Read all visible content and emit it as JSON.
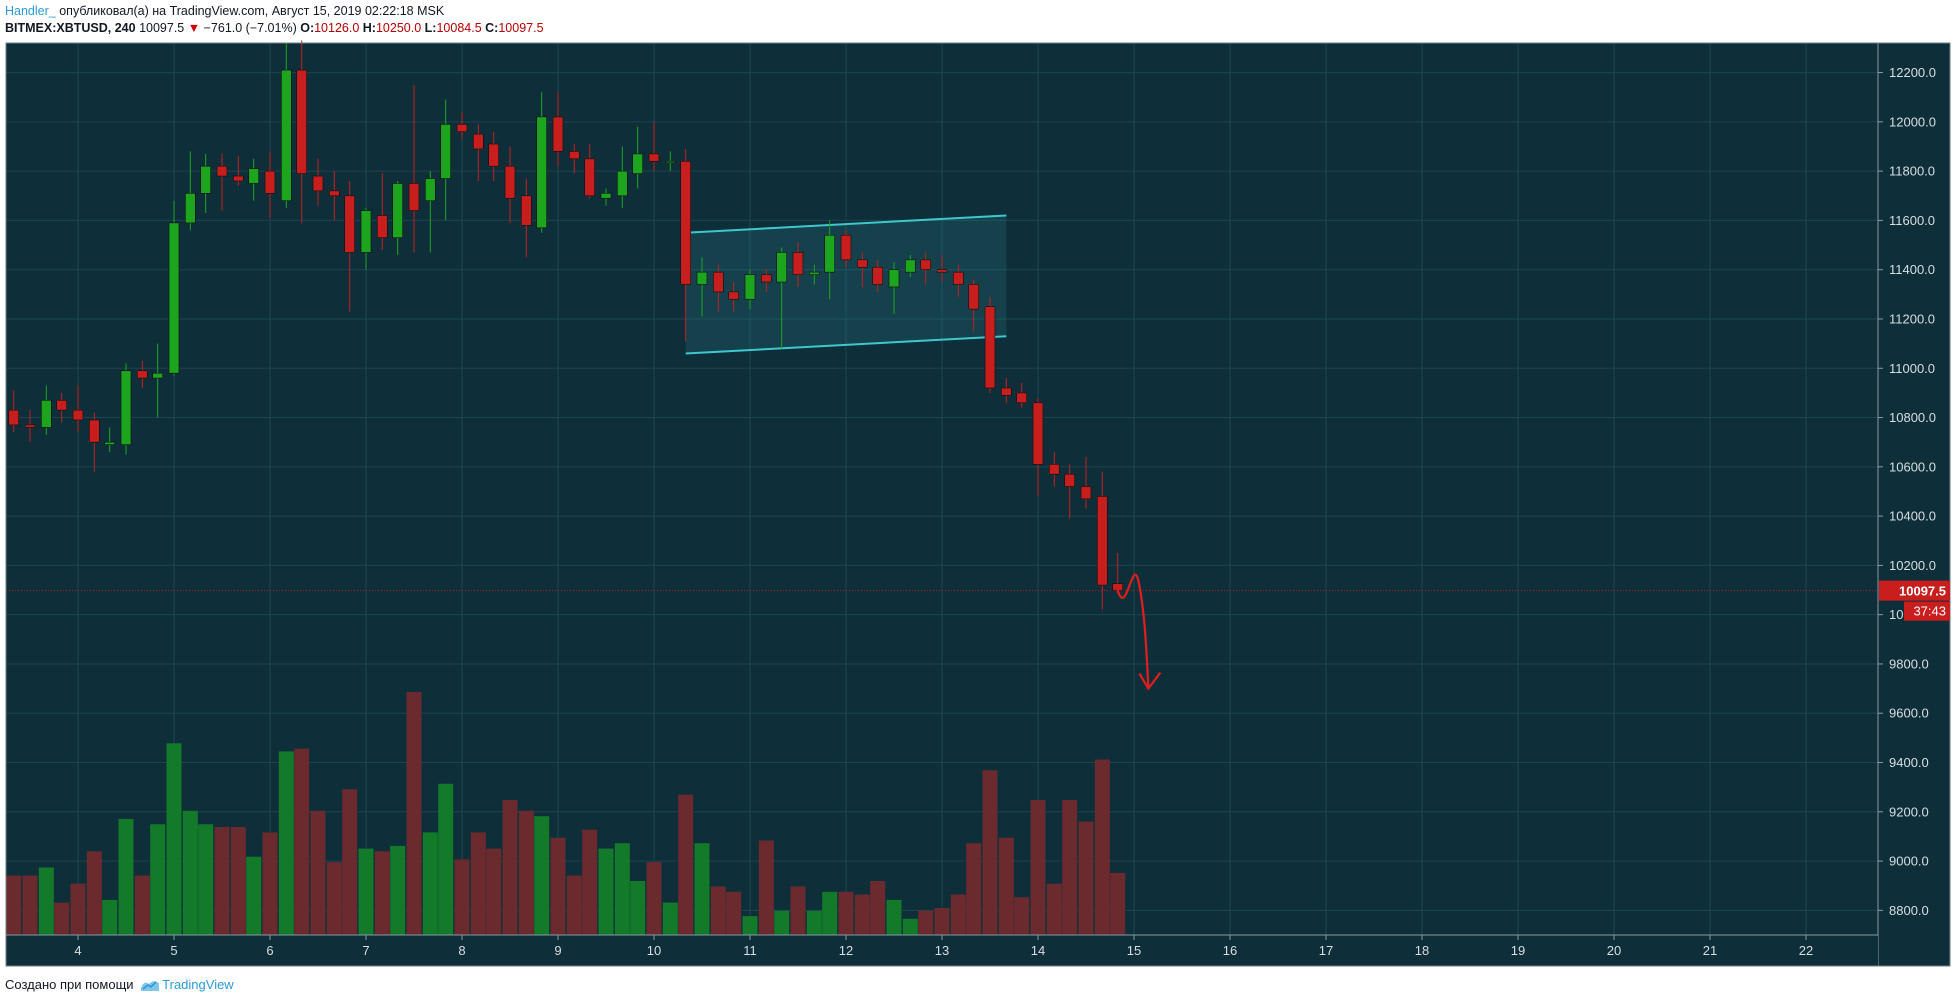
{
  "header": {
    "author": "Handler_",
    "published_text": "опубликовал(а) на TradingView.com, Август 15, 2019 02:22:18 MSK",
    "symbol": "BITMEX:XBTUSD, 240",
    "last": "10097.5",
    "change_arrow": "▼",
    "change": "−761.0 (−7.01%)",
    "o_label": "O:",
    "o_value": "10126.0",
    "h_label": "H:",
    "h_value": "10250.0",
    "l_label": "L:",
    "l_value": "10084.5",
    "c_label": "C:",
    "c_value": "10097.5"
  },
  "footer": {
    "created_text": "Создано при помощи",
    "brand": "TradingView"
  },
  "colors": {
    "background": "#0e2f3a",
    "grid": "#1d4451",
    "up": "#1ea51e",
    "down": "#c81e1e",
    "up_volume": "#137a2a",
    "down_volume": "#6a2a2e",
    "channel": "#3ec8cc",
    "annotation_arrow": "#e01e1e",
    "price_tag": "#c81e1e",
    "axis_text": "#d8dee2"
  },
  "chart_data": {
    "type": "candlestick",
    "symbol": "BITMEX:XBTUSD",
    "interval": "240",
    "ylim": [
      8700,
      12320
    ],
    "y_ticks": [
      12200,
      12000,
      11800,
      11600,
      11400,
      11200,
      11000,
      10800,
      10600,
      10400,
      10200,
      10000,
      9800,
      9600,
      9400,
      9200,
      9000,
      8800
    ],
    "y_tick_labels": [
      "12200.0",
      "12000.0",
      "11800.0",
      "11600.0",
      "11400.0",
      "11200.0",
      "11000.0",
      "10800.0",
      "10600.0",
      "10400.0",
      "10200.0",
      "10000.0",
      "9800.0",
      "9600.0",
      "9400.0",
      "9200.0",
      "9000.0",
      "8800.0"
    ],
    "x_tick_labels": [
      "4",
      "5",
      "6",
      "7",
      "8",
      "9",
      "10",
      "11",
      "12",
      "13",
      "14",
      "15",
      "16",
      "17",
      "18",
      "19",
      "20",
      "21",
      "22"
    ],
    "x_ticks": [
      4,
      5,
      6,
      7,
      8,
      9,
      10,
      11,
      12,
      13,
      14,
      15,
      16,
      17,
      18,
      19,
      20,
      21,
      22
    ],
    "xlim": [
      3.25,
      22.75
    ],
    "last_price_label": "10097.5",
    "countdown_label": "37:43",
    "candles": [
      {
        "t": 3.33,
        "o": 10830,
        "h": 10910,
        "l": 10740,
        "c": 10770
      },
      {
        "t": 3.5,
        "o": 10770,
        "h": 10830,
        "l": 10700,
        "c": 10760
      },
      {
        "t": 3.67,
        "o": 10760,
        "h": 10930,
        "l": 10730,
        "c": 10870
      },
      {
        "t": 3.83,
        "o": 10870,
        "h": 10900,
        "l": 10780,
        "c": 10830
      },
      {
        "t": 4.0,
        "o": 10830,
        "h": 10930,
        "l": 10740,
        "c": 10790
      },
      {
        "t": 4.17,
        "o": 10790,
        "h": 10820,
        "l": 10580,
        "c": 10700
      },
      {
        "t": 4.33,
        "o": 10690,
        "h": 10760,
        "l": 10660,
        "c": 10700
      },
      {
        "t": 4.5,
        "o": 10690,
        "h": 11020,
        "l": 10650,
        "c": 10990
      },
      {
        "t": 4.67,
        "o": 10990,
        "h": 11030,
        "l": 10920,
        "c": 10960
      },
      {
        "t": 4.83,
        "o": 10960,
        "h": 11100,
        "l": 10800,
        "c": 10980
      },
      {
        "t": 5.0,
        "o": 10980,
        "h": 11680,
        "l": 10970,
        "c": 11590
      },
      {
        "t": 5.17,
        "o": 11590,
        "h": 11880,
        "l": 11560,
        "c": 11710
      },
      {
        "t": 5.33,
        "o": 11710,
        "h": 11870,
        "l": 11630,
        "c": 11820
      },
      {
        "t": 5.5,
        "o": 11820,
        "h": 11870,
        "l": 11640,
        "c": 11780
      },
      {
        "t": 5.67,
        "o": 11780,
        "h": 11860,
        "l": 11740,
        "c": 11760
      },
      {
        "t": 5.83,
        "o": 11750,
        "h": 11850,
        "l": 11680,
        "c": 11810
      },
      {
        "t": 6.0,
        "o": 11800,
        "h": 11880,
        "l": 11610,
        "c": 11710
      },
      {
        "t": 6.17,
        "o": 11680,
        "h": 12320,
        "l": 11650,
        "c": 12210
      },
      {
        "t": 6.33,
        "o": 12210,
        "h": 12330,
        "l": 11590,
        "c": 11790
      },
      {
        "t": 6.5,
        "o": 11780,
        "h": 11850,
        "l": 11660,
        "c": 11720
      },
      {
        "t": 6.67,
        "o": 11720,
        "h": 11800,
        "l": 11600,
        "c": 11700
      },
      {
        "t": 6.83,
        "o": 11700,
        "h": 11760,
        "l": 11230,
        "c": 11470
      },
      {
        "t": 7.0,
        "o": 11470,
        "h": 11650,
        "l": 11400,
        "c": 11640
      },
      {
        "t": 7.17,
        "o": 11620,
        "h": 11790,
        "l": 11480,
        "c": 11530
      },
      {
        "t": 7.33,
        "o": 11530,
        "h": 11760,
        "l": 11460,
        "c": 11750
      },
      {
        "t": 7.5,
        "o": 11750,
        "h": 12150,
        "l": 11470,
        "c": 11640
      },
      {
        "t": 7.67,
        "o": 11680,
        "h": 11800,
        "l": 11470,
        "c": 11770
      },
      {
        "t": 7.83,
        "o": 11770,
        "h": 12090,
        "l": 11600,
        "c": 11990
      },
      {
        "t": 8.0,
        "o": 11990,
        "h": 12040,
        "l": 11930,
        "c": 11960
      },
      {
        "t": 8.17,
        "o": 11950,
        "h": 11990,
        "l": 11760,
        "c": 11890
      },
      {
        "t": 8.33,
        "o": 11910,
        "h": 11960,
        "l": 11760,
        "c": 11820
      },
      {
        "t": 8.5,
        "o": 11820,
        "h": 11900,
        "l": 11590,
        "c": 11690
      },
      {
        "t": 8.67,
        "o": 11700,
        "h": 11770,
        "l": 11450,
        "c": 11580
      },
      {
        "t": 8.83,
        "o": 11570,
        "h": 12120,
        "l": 11550,
        "c": 12020
      },
      {
        "t": 9.0,
        "o": 12020,
        "h": 12120,
        "l": 11820,
        "c": 11880
      },
      {
        "t": 9.17,
        "o": 11880,
        "h": 11910,
        "l": 11790,
        "c": 11850
      },
      {
        "t": 9.33,
        "o": 11850,
        "h": 11910,
        "l": 11690,
        "c": 11700
      },
      {
        "t": 9.5,
        "o": 11690,
        "h": 11730,
        "l": 11660,
        "c": 11710
      },
      {
        "t": 9.67,
        "o": 11700,
        "h": 11900,
        "l": 11650,
        "c": 11800
      },
      {
        "t": 9.83,
        "o": 11790,
        "h": 11980,
        "l": 11730,
        "c": 11870
      },
      {
        "t": 10.0,
        "o": 11870,
        "h": 12000,
        "l": 11800,
        "c": 11840
      },
      {
        "t": 10.17,
        "o": 11840,
        "h": 11880,
        "l": 11800,
        "c": 11840
      },
      {
        "t": 10.33,
        "o": 11840,
        "h": 11890,
        "l": 11110,
        "c": 11340
      },
      {
        "t": 10.5,
        "o": 11340,
        "h": 11450,
        "l": 11210,
        "c": 11390
      },
      {
        "t": 10.67,
        "o": 11390,
        "h": 11420,
        "l": 11230,
        "c": 11310
      },
      {
        "t": 10.83,
        "o": 11310,
        "h": 11350,
        "l": 11230,
        "c": 11280
      },
      {
        "t": 11.0,
        "o": 11280,
        "h": 11400,
        "l": 11240,
        "c": 11380
      },
      {
        "t": 11.17,
        "o": 11380,
        "h": 11400,
        "l": 11310,
        "c": 11350
      },
      {
        "t": 11.33,
        "o": 11350,
        "h": 11490,
        "l": 11080,
        "c": 11470
      },
      {
        "t": 11.5,
        "o": 11470,
        "h": 11510,
        "l": 11330,
        "c": 11380
      },
      {
        "t": 11.67,
        "o": 11380,
        "h": 11420,
        "l": 11340,
        "c": 11390
      },
      {
        "t": 11.83,
        "o": 11390,
        "h": 11600,
        "l": 11280,
        "c": 11540
      },
      {
        "t": 12.0,
        "o": 11540,
        "h": 11560,
        "l": 11410,
        "c": 11440
      },
      {
        "t": 12.17,
        "o": 11440,
        "h": 11470,
        "l": 11330,
        "c": 11410
      },
      {
        "t": 12.33,
        "o": 11410,
        "h": 11440,
        "l": 11310,
        "c": 11340
      },
      {
        "t": 12.5,
        "o": 11330,
        "h": 11430,
        "l": 11220,
        "c": 11400
      },
      {
        "t": 12.67,
        "o": 11390,
        "h": 11460,
        "l": 11370,
        "c": 11440
      },
      {
        "t": 12.83,
        "o": 11440,
        "h": 11470,
        "l": 11340,
        "c": 11400
      },
      {
        "t": 13.0,
        "o": 11400,
        "h": 11460,
        "l": 11350,
        "c": 11390
      },
      {
        "t": 13.17,
        "o": 11390,
        "h": 11420,
        "l": 11290,
        "c": 11340
      },
      {
        "t": 13.33,
        "o": 11340,
        "h": 11360,
        "l": 11150,
        "c": 11240
      },
      {
        "t": 13.5,
        "o": 11250,
        "h": 11290,
        "l": 10900,
        "c": 10920
      },
      {
        "t": 13.67,
        "o": 10920,
        "h": 10960,
        "l": 10860,
        "c": 10890
      },
      {
        "t": 13.83,
        "o": 10900,
        "h": 10940,
        "l": 10840,
        "c": 10860
      },
      {
        "t": 14.0,
        "o": 10860,
        "h": 10880,
        "l": 10480,
        "c": 10610
      },
      {
        "t": 14.17,
        "o": 10610,
        "h": 10660,
        "l": 10520,
        "c": 10570
      },
      {
        "t": 14.33,
        "o": 10570,
        "h": 10610,
        "l": 10390,
        "c": 10520
      },
      {
        "t": 14.5,
        "o": 10520,
        "h": 10640,
        "l": 10430,
        "c": 10470
      },
      {
        "t": 14.67,
        "o": 10480,
        "h": 10580,
        "l": 10020,
        "c": 10120
      },
      {
        "t": 14.83,
        "o": 10126,
        "h": 10250,
        "l": 10084.5,
        "c": 10097.5
      }
    ],
    "volume_scale_max": 1,
    "volumes": [
      0.22,
      0.22,
      0.25,
      0.12,
      0.19,
      0.31,
      0.13,
      0.43,
      0.22,
      0.41,
      0.71,
      0.46,
      0.41,
      0.4,
      0.4,
      0.29,
      0.38,
      0.68,
      0.69,
      0.46,
      0.27,
      0.54,
      0.32,
      0.31,
      0.33,
      0.9,
      0.38,
      0.56,
      0.28,
      0.38,
      0.32,
      0.5,
      0.46,
      0.44,
      0.36,
      0.22,
      0.39,
      0.32,
      0.34,
      0.2,
      0.27,
      0.12,
      0.52,
      0.34,
      0.18,
      0.16,
      0.07,
      0.35,
      0.09,
      0.18,
      0.09,
      0.16,
      0.16,
      0.15,
      0.2,
      0.13,
      0.06,
      0.09,
      0.1,
      0.15,
      0.34,
      0.61,
      0.36,
      0.14,
      0.5,
      0.19,
      0.5,
      0.42,
      0.65,
      0.23
    ],
    "channel": {
      "upper": [
        [
          10.33,
          11550
        ],
        [
          13.67,
          11620
        ]
      ],
      "lower": [
        [
          10.33,
          11060
        ],
        [
          13.67,
          11130
        ]
      ]
    },
    "projection_arrow": [
      [
        14.83,
        10100
      ],
      [
        14.92,
        10060
      ],
      [
        15.05,
        10130
      ],
      [
        15.15,
        9700
      ]
    ]
  }
}
